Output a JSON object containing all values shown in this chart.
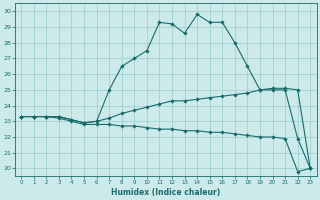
{
  "title": "",
  "xlabel": "Humidex (Indice chaleur)",
  "bg_color": "#cceaea",
  "grid_color": "#99cccc",
  "line_color": "#1a6b6b",
  "xlim": [
    -0.5,
    23.5
  ],
  "ylim": [
    19.5,
    30.5
  ],
  "xticks": [
    0,
    1,
    2,
    3,
    4,
    5,
    6,
    7,
    8,
    9,
    10,
    11,
    12,
    13,
    14,
    15,
    16,
    17,
    18,
    19,
    20,
    21,
    22,
    23
  ],
  "yticks": [
    20,
    21,
    22,
    23,
    24,
    25,
    26,
    27,
    28,
    29,
    30
  ],
  "line1_x": [
    0,
    1,
    2,
    3,
    4,
    5,
    6,
    7,
    8,
    9,
    10,
    11,
    12,
    13,
    14,
    15,
    16,
    17,
    18,
    19,
    20,
    21,
    22,
    23
  ],
  "line1_y": [
    23.3,
    23.3,
    23.3,
    23.3,
    23.1,
    22.9,
    23.0,
    25.0,
    26.5,
    27.0,
    27.5,
    29.3,
    29.2,
    28.6,
    29.8,
    29.3,
    29.3,
    28.0,
    26.5,
    25.0,
    25.0,
    25.0,
    21.9,
    20.0
  ],
  "line2_x": [
    0,
    1,
    2,
    3,
    4,
    5,
    6,
    7,
    8,
    9,
    10,
    11,
    12,
    13,
    14,
    15,
    16,
    17,
    18,
    19,
    20,
    21,
    22,
    23
  ],
  "line2_y": [
    23.3,
    23.3,
    23.3,
    23.3,
    23.1,
    22.9,
    23.0,
    23.2,
    23.5,
    23.7,
    23.9,
    24.1,
    24.3,
    24.3,
    24.4,
    24.5,
    24.6,
    24.7,
    24.8,
    25.0,
    25.1,
    25.1,
    25.0,
    20.0
  ],
  "line3_x": [
    0,
    1,
    2,
    3,
    4,
    5,
    6,
    7,
    8,
    9,
    10,
    11,
    12,
    13,
    14,
    15,
    16,
    17,
    18,
    19,
    20,
    21,
    22,
    23
  ],
  "line3_y": [
    23.3,
    23.3,
    23.3,
    23.2,
    23.0,
    22.8,
    22.8,
    22.8,
    22.7,
    22.7,
    22.6,
    22.5,
    22.5,
    22.4,
    22.4,
    22.3,
    22.3,
    22.2,
    22.1,
    22.0,
    22.0,
    21.9,
    19.8,
    20.0
  ]
}
